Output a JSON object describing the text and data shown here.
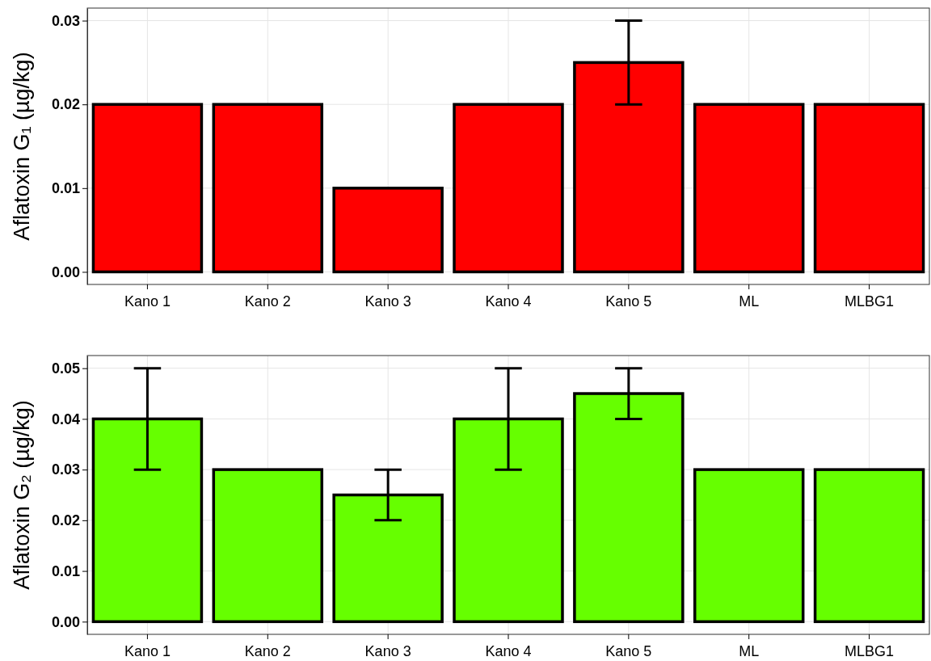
{
  "chart_data": [
    {
      "type": "bar",
      "ylabel": "Aflatoxin G₁ (µg/kg)",
      "categories": [
        "Kano 1",
        "Kano 2",
        "Kano 3",
        "Kano 4",
        "Kano 5",
        "ML",
        "MLBG1"
      ],
      "values": [
        0.02,
        0.02,
        0.01,
        0.02,
        0.025,
        0.02,
        0.02
      ],
      "errors": [
        null,
        null,
        null,
        null,
        0.005,
        null,
        null
      ],
      "color": "#ff0000",
      "ylim": [
        -0.0015,
        0.0315
      ],
      "yticks": [
        {
          "value": 0,
          "label": "0.00"
        },
        {
          "value": 0.01,
          "label": "0.01"
        },
        {
          "value": 0.02,
          "label": "0.02"
        },
        {
          "value": 0.03,
          "label": "0.03"
        }
      ],
      "grid": true
    },
    {
      "type": "bar",
      "ylabel": "Aflatoxin G₂ (µg/kg)",
      "categories": [
        "Kano 1",
        "Kano 2",
        "Kano 3",
        "Kano 4",
        "Kano 5",
        "ML",
        "MLBG1"
      ],
      "values": [
        0.04,
        0.03,
        0.025,
        0.04,
        0.045,
        0.03,
        0.03
      ],
      "errors": [
        0.01,
        null,
        0.005,
        0.01,
        0.005,
        null,
        null
      ],
      "color": "#66ff00",
      "ylim": [
        -0.0025,
        0.0525
      ],
      "yticks": [
        {
          "value": 0,
          "label": "0.00"
        },
        {
          "value": 0.01,
          "label": "0.01"
        },
        {
          "value": 0.02,
          "label": "0.02"
        },
        {
          "value": 0.03,
          "label": "0.03"
        },
        {
          "value": 0.04,
          "label": "0.04"
        },
        {
          "value": 0.05,
          "label": "0.05"
        }
      ],
      "grid": true
    }
  ]
}
